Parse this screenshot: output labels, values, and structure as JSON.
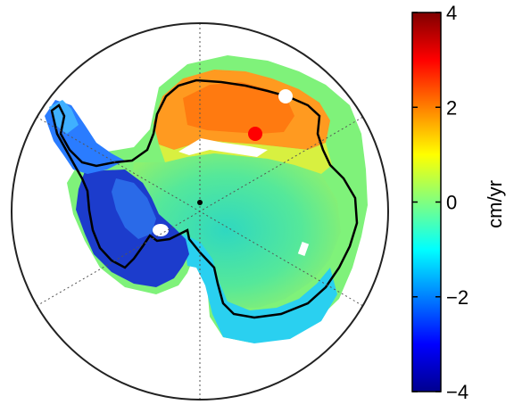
{
  "colorbar": {
    "unit_label": "cm/yr",
    "ticks": [
      "4",
      "2",
      "0",
      "−2",
      "−4"
    ],
    "min": -4,
    "max": 4,
    "colors": [
      "#00008f",
      "#0000ff",
      "#0080ff",
      "#00ffff",
      "#80ff80",
      "#ffff00",
      "#ff8000",
      "#ff0000",
      "#800000"
    ]
  },
  "map": {
    "projection": "south-polar-stereographic",
    "graticule": "dotted",
    "fill_colors": {
      "east_antarctica": "#3fe0a8",
      "west_antarctica": "#1a3fd6",
      "peninsula": "#2a7cff",
      "ross_area": "#2ad0f0",
      "dronning_maud_coast": "#ff9a20",
      "outer_band": "#e8ff40"
    },
    "markers": [
      {
        "id": "red-site",
        "color": "#ff0000"
      },
      {
        "id": "white-site",
        "color": "#ffffff"
      }
    ]
  }
}
